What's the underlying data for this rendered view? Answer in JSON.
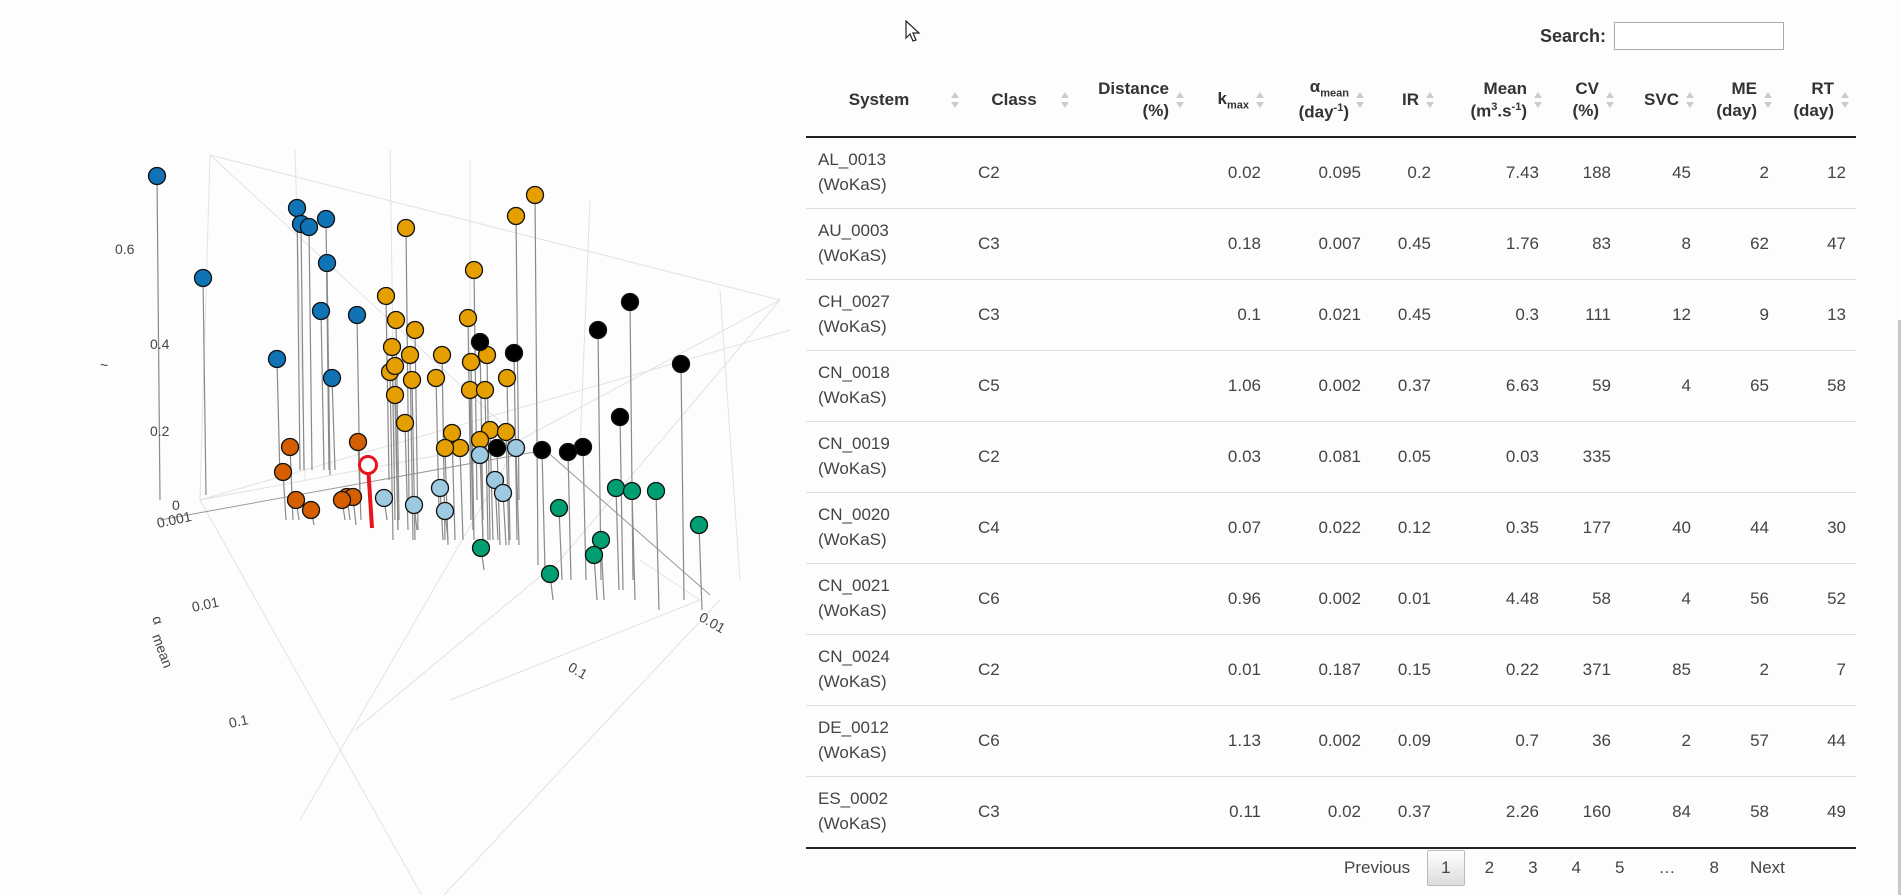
{
  "search": {
    "label": "Search:",
    "value": ""
  },
  "table": {
    "columns": [
      {
        "label": "System"
      },
      {
        "label": "Class"
      },
      {
        "label": "Distance",
        "label2": "(%)"
      },
      {
        "label": "k",
        "sub": "max"
      },
      {
        "label": "α",
        "sub": "mean",
        "label2": "(day",
        "sup2": "-1",
        "end2": ")"
      },
      {
        "label": "IR"
      },
      {
        "label": "Mean",
        "label2": "(m",
        "sup2": "3",
        "mid2": ".s",
        "sup3": "-1",
        "end2": ")"
      },
      {
        "label": "CV",
        "label2": "(%)"
      },
      {
        "label": "SVC"
      },
      {
        "label": "ME",
        "label2": "(day)"
      },
      {
        "label": "RT",
        "label2": "(day)"
      }
    ],
    "rows": [
      {
        "system": "AL_0013",
        "source": "(WoKaS)",
        "class": "C2",
        "distance": "",
        "kmax": "0.02",
        "amean": "0.095",
        "ir": "0.2",
        "mean": "7.43",
        "cv": "188",
        "svc": "45",
        "me": "2",
        "rt": "12"
      },
      {
        "system": "AU_0003",
        "source": "(WoKaS)",
        "class": "C3",
        "distance": "",
        "kmax": "0.18",
        "amean": "0.007",
        "ir": "0.45",
        "mean": "1.76",
        "cv": "83",
        "svc": "8",
        "me": "62",
        "rt": "47"
      },
      {
        "system": "CH_0027",
        "source": "(WoKaS)",
        "class": "C3",
        "distance": "",
        "kmax": "0.1",
        "amean": "0.021",
        "ir": "0.45",
        "mean": "0.3",
        "cv": "111",
        "svc": "12",
        "me": "9",
        "rt": "13"
      },
      {
        "system": "CN_0018",
        "source": "(WoKaS)",
        "class": "C5",
        "distance": "",
        "kmax": "1.06",
        "amean": "0.002",
        "ir": "0.37",
        "mean": "6.63",
        "cv": "59",
        "svc": "4",
        "me": "65",
        "rt": "58"
      },
      {
        "system": "CN_0019",
        "source": "(WoKaS)",
        "class": "C2",
        "distance": "",
        "kmax": "0.03",
        "amean": "0.081",
        "ir": "0.05",
        "mean": "0.03",
        "cv": "335",
        "svc": "",
        "me": "",
        "rt": ""
      },
      {
        "system": "CN_0020",
        "source": "(WoKaS)",
        "class": "C4",
        "distance": "",
        "kmax": "0.07",
        "amean": "0.022",
        "ir": "0.12",
        "mean": "0.35",
        "cv": "177",
        "svc": "40",
        "me": "44",
        "rt": "30"
      },
      {
        "system": "CN_0021",
        "source": "(WoKaS)",
        "class": "C6",
        "distance": "",
        "kmax": "0.96",
        "amean": "0.002",
        "ir": "0.01",
        "mean": "4.48",
        "cv": "58",
        "svc": "4",
        "me": "56",
        "rt": "52"
      },
      {
        "system": "CN_0024",
        "source": "(WoKaS)",
        "class": "C2",
        "distance": "",
        "kmax": "0.01",
        "amean": "0.187",
        "ir": "0.15",
        "mean": "0.22",
        "cv": "371",
        "svc": "85",
        "me": "2",
        "rt": "7"
      },
      {
        "system": "DE_0012",
        "source": "(WoKaS)",
        "class": "C6",
        "distance": "",
        "kmax": "1.13",
        "amean": "0.002",
        "ir": "0.09",
        "mean": "0.7",
        "cv": "36",
        "svc": "2",
        "me": "57",
        "rt": "44"
      },
      {
        "system": "ES_0002",
        "source": "(WoKaS)",
        "class": "C3",
        "distance": "",
        "kmax": "0.11",
        "amean": "0.02",
        "ir": "0.37",
        "mean": "2.26",
        "cv": "160",
        "svc": "84",
        "me": "58",
        "rt": "49"
      }
    ]
  },
  "pagination": {
    "previous": "Previous",
    "pages": [
      "1",
      "2",
      "3",
      "4",
      "5",
      "…",
      "8"
    ],
    "active": "1",
    "next": "Next"
  },
  "plot3d": {
    "z_ticks": [
      "0",
      "0.2",
      "0.4",
      "0.6"
    ],
    "z_axis_label": "~",
    "y_ticks": [
      "0.001",
      "0.01",
      "0.1"
    ],
    "y_axis_label": "α",
    "y_axis_sub": "mean",
    "x_ticks": [
      "0.01",
      "0.1"
    ],
    "colors": {
      "blue": "#0f73b6",
      "orange": "#e69f00",
      "black": "#000000",
      "vermilion": "#d55e00",
      "lightblue": "#9ecae1",
      "green": "#009e73",
      "highlight": "#e8141b"
    }
  }
}
